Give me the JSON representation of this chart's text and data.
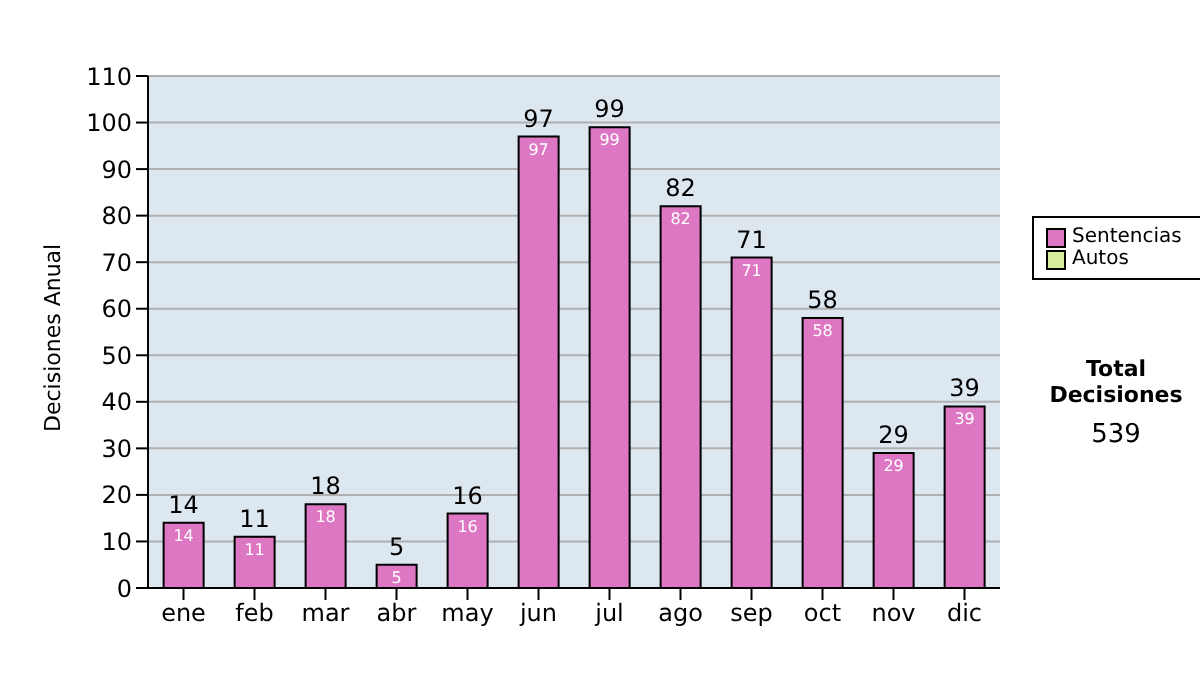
{
  "chart_data": {
    "type": "bar",
    "ylabel": "Decisiones Anual",
    "categories": [
      "ene",
      "feb",
      "mar",
      "abr",
      "may",
      "jun",
      "jul",
      "ago",
      "sep",
      "oct",
      "nov",
      "dic"
    ],
    "series": [
      {
        "name": "Sentencias",
        "color": "#dd77c4",
        "values": [
          14,
          11,
          18,
          5,
          16,
          97,
          99,
          82,
          71,
          58,
          29,
          39
        ]
      },
      {
        "name": "Autos",
        "color": "#d8eca0",
        "values": [
          null,
          null,
          null,
          null,
          null,
          null,
          null,
          null,
          null,
          null,
          null,
          null
        ]
      }
    ],
    "stacked": true,
    "ylim": [
      0,
      110
    ],
    "yticks": [
      0,
      10,
      20,
      30,
      40,
      50,
      60,
      70,
      80,
      90,
      100,
      110
    ],
    "grid": "y",
    "legend": "right",
    "data_labels": true,
    "annotations": [
      "Total Decisiones",
      "539",
      {
        "text": "14",
        "x": "ene",
        "y": 14
      },
      {
        "text": "11",
        "x": "feb",
        "y": 11
      },
      {
        "text": "18",
        "x": "mar",
        "y": 18
      },
      {
        "text": "5",
        "x": "abr",
        "y": 5
      },
      {
        "text": "16",
        "x": "may",
        "y": 16
      },
      {
        "text": "97",
        "x": "jun",
        "y": 97
      },
      {
        "text": "99",
        "x": "jul",
        "y": 99
      },
      {
        "text": "82",
        "x": "ago",
        "y": 82
      },
      {
        "text": "71",
        "x": "sep",
        "y": 71
      },
      {
        "text": "58",
        "x": "oct",
        "y": 58
      },
      {
        "text": "29",
        "x": "nov",
        "y": 29
      },
      {
        "text": "39",
        "x": "dic",
        "y": 39
      }
    ]
  }
}
